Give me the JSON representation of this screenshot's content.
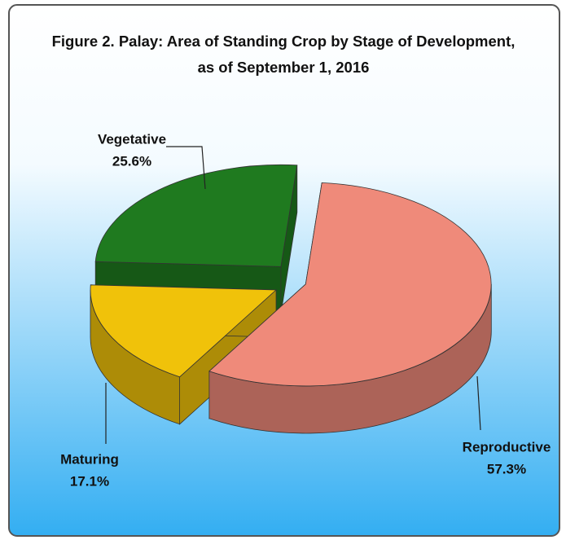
{
  "chart_data": {
    "type": "pie",
    "title": [
      "Figure 2. Palay: Area of Standing Crop by Stage of Development,",
      "as of  September 1, 2016"
    ],
    "categories": [
      "Reproductive",
      "Maturing",
      "Vegetative"
    ],
    "values": [
      57.3,
      17.1,
      25.6
    ],
    "value_labels": [
      "57.3%",
      "17.1%",
      "25.6%"
    ],
    "colors": [
      "#ef8a7a",
      "#f0c20a",
      "#1f7a1f"
    ]
  }
}
